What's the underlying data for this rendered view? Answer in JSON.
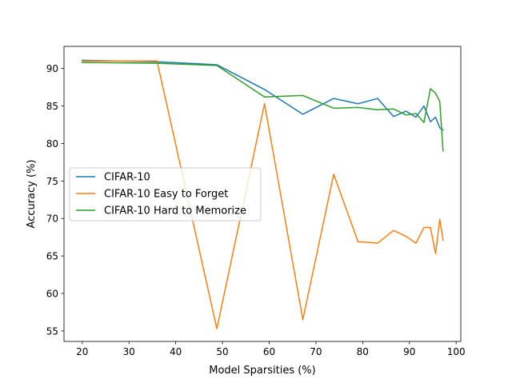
{
  "chart_data": {
    "type": "line",
    "title": "",
    "xlabel": "Model Sparsities (%)",
    "ylabel": "Accuracy (%)",
    "xlim": [
      16.1,
      101.0
    ],
    "ylim": [
      53.6,
      92.95
    ],
    "grid": false,
    "legend_position": "center-left",
    "x_ticks": [
      20,
      30,
      40,
      50,
      60,
      70,
      80,
      90,
      100
    ],
    "y_ticks": [
      55,
      60,
      65,
      70,
      75,
      80,
      85,
      90
    ],
    "series": [
      {
        "name": "CIFAR-10",
        "color": "#1f77b4",
        "x": [
          20,
          36,
          48.8,
          59,
          67.2,
          73.8,
          79,
          83.2,
          86.6,
          89.3,
          91.4,
          93.1,
          94.5,
          95.6,
          96.5,
          97.2
        ],
        "y": [
          91.1,
          90.9,
          90.5,
          87.2,
          83.9,
          86.0,
          85.3,
          86.0,
          83.6,
          84.3,
          83.5,
          85.0,
          82.9,
          83.5,
          82.1,
          81.8
        ]
      },
      {
        "name": "CIFAR-10 Easy to Forget",
        "color": "#ff7f0e",
        "x": [
          20,
          36,
          48.8,
          59,
          67.2,
          73.8,
          79,
          83.2,
          86.6,
          89.3,
          91.4,
          93.1,
          94.5,
          95.6,
          96.5,
          97.2
        ],
        "y": [
          91.0,
          91.0,
          55.3,
          85.3,
          56.5,
          75.9,
          66.9,
          66.7,
          68.4,
          67.6,
          66.7,
          68.8,
          68.8,
          65.3,
          69.9,
          67.1
        ]
      },
      {
        "name": "CIFAR-10 Hard to Memorize",
        "color": "#2ca02c",
        "x": [
          20,
          36,
          48.8,
          59,
          67.2,
          73.8,
          79,
          83.2,
          86.6,
          89.3,
          91.4,
          93.1,
          94.5,
          95.6,
          96.5,
          97.2
        ],
        "y": [
          90.8,
          90.7,
          90.4,
          86.2,
          86.4,
          84.7,
          84.8,
          84.5,
          84.6,
          83.8,
          84.0,
          82.8,
          87.3,
          86.7,
          85.6,
          79.0
        ]
      }
    ]
  }
}
